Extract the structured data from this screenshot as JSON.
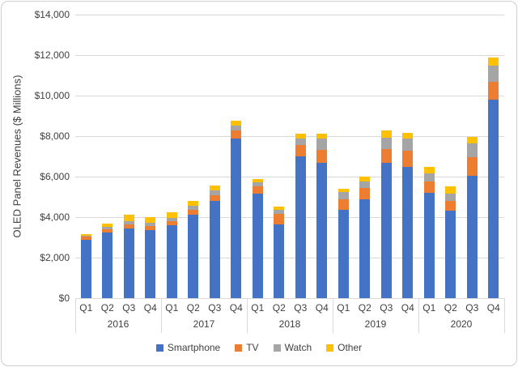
{
  "chart": {
    "ylabel": "OLED Panel Revenues ($ Millions)"
  },
  "chart_data": {
    "type": "bar",
    "subtype": "stacked-column",
    "title": "",
    "xlabel": "",
    "ylabel": "OLED Panel Revenues ($ Millions)",
    "ylim": [
      0,
      14000
    ],
    "ytick_step": 2000,
    "ytick_values": [
      0,
      2000,
      4000,
      6000,
      8000,
      10000,
      12000,
      14000
    ],
    "ytick_labels": [
      "$0",
      "$2,000",
      "$4,000",
      "$6,000",
      "$8,000",
      "$10,000",
      "$12,000",
      "$14,000"
    ],
    "grid": "horizontal",
    "legend_position": "bottom",
    "years": [
      "2016",
      "2017",
      "2018",
      "2019",
      "2020"
    ],
    "quarters": [
      "Q1",
      "Q2",
      "Q3",
      "Q4"
    ],
    "categories": [
      "2016 Q1",
      "2016 Q2",
      "2016 Q3",
      "2016 Q4",
      "2017 Q1",
      "2017 Q2",
      "2017 Q3",
      "2017 Q4",
      "2018 Q1",
      "2018 Q2",
      "2018 Q3",
      "2018 Q4",
      "2019 Q1",
      "2019 Q2",
      "2019 Q3",
      "2019 Q4",
      "2020 Q1",
      "2020 Q2",
      "2020 Q3",
      "2020 Q4"
    ],
    "series": [
      {
        "name": "Smartphone",
        "color": "#4472C4",
        "values": [
          2900,
          3250,
          3450,
          3350,
          3600,
          4140,
          4800,
          7900,
          5150,
          3650,
          7000,
          6680,
          4360,
          4890,
          6680,
          6500,
          5200,
          4310,
          6050,
          9800
        ]
      },
      {
        "name": "TV",
        "color": "#ED7D31",
        "values": [
          130,
          160,
          200,
          200,
          200,
          240,
          290,
          400,
          370,
          520,
          560,
          650,
          530,
          570,
          690,
          800,
          560,
          500,
          900,
          900
        ]
      },
      {
        "name": "Watch",
        "color": "#A5A5A5",
        "values": [
          50,
          110,
          160,
          170,
          160,
          200,
          230,
          240,
          200,
          180,
          330,
          550,
          360,
          320,
          570,
          570,
          400,
          370,
          700,
          800
        ]
      },
      {
        "name": "Other",
        "color": "#FFC000",
        "values": [
          90,
          160,
          300,
          270,
          300,
          220,
          240,
          230,
          160,
          170,
          220,
          220,
          170,
          220,
          330,
          290,
          330,
          340,
          300,
          380
        ]
      }
    ]
  }
}
